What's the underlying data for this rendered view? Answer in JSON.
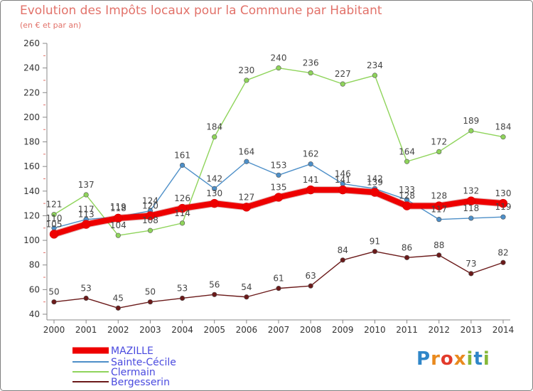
{
  "title": "Evolution des Impôts locaux pour la Commune par Habitant",
  "subtitle": "(en € et par an)",
  "logo": {
    "letters": [
      "P",
      "r",
      "o",
      "x",
      "i",
      "t",
      "i"
    ],
    "colors": [
      "#2f86c8",
      "#e98a1e",
      "#e23a2b",
      "#e98a1e",
      "#86b838",
      "#2f86c8",
      "#86b838"
    ]
  },
  "chart_data": {
    "type": "line",
    "x": [
      2000,
      2001,
      2002,
      2003,
      2004,
      2005,
      2006,
      2007,
      2008,
      2009,
      2010,
      2011,
      2012,
      2013,
      2014
    ],
    "ylim": [
      40,
      260
    ],
    "yticks": [
      40,
      60,
      80,
      100,
      120,
      140,
      160,
      180,
      200,
      220,
      240,
      260
    ],
    "grid": false,
    "legend_position": "bottom-left",
    "series": [
      {
        "name": "MAZILLE",
        "color": "#ee0000",
        "values": [
          105,
          113,
          118,
          120,
          126,
          130,
          127,
          135,
          141,
          141,
          139,
          128,
          128,
          132,
          130
        ]
      },
      {
        "name": "Sainte-Cécile",
        "color": "#4d8fc8",
        "values": [
          110,
          117,
          119,
          124,
          161,
          142,
          164,
          153,
          162,
          146,
          142,
          133,
          117,
          118,
          119
        ]
      },
      {
        "name": "Clermain",
        "color": "#8fd45b",
        "values": [
          121,
          137,
          104,
          108,
          114,
          184,
          230,
          240,
          236,
          227,
          234,
          164,
          172,
          189,
          184
        ]
      },
      {
        "name": "Bergesserin",
        "color": "#6b1a1a",
        "values": [
          50,
          53,
          45,
          50,
          53,
          56,
          54,
          61,
          63,
          84,
          91,
          86,
          88,
          73,
          82
        ]
      }
    ]
  }
}
